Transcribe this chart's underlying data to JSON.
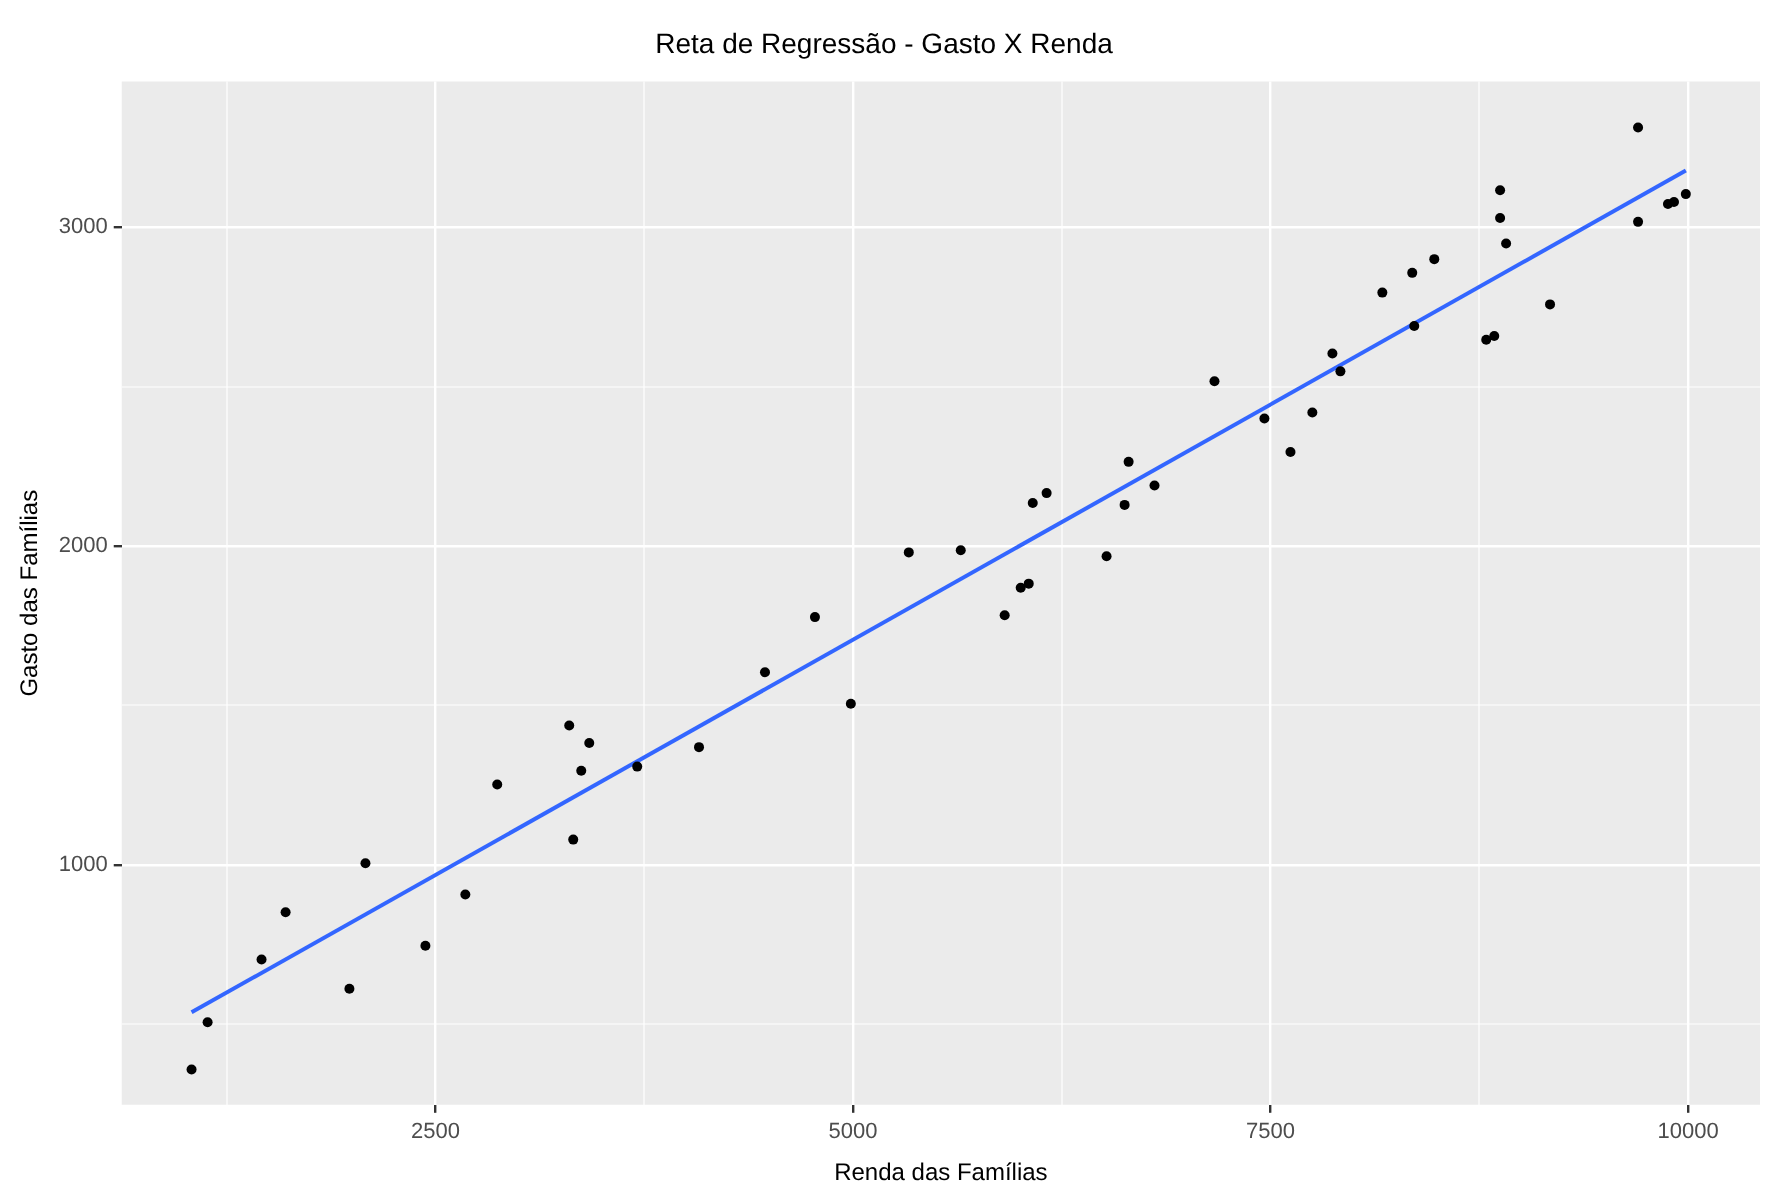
{
  "chart_data": {
    "type": "scatter",
    "title": "Reta de Regressão - Gasto X Renda",
    "xlabel": "Renda das Famílias",
    "ylabel": "Gasto das Famílias",
    "series": [
      {
        "type": "scatter",
        "color": "#000000",
        "marker": "circle",
        "x": [
          1040,
          1136,
          1459,
          1603,
          1985,
          2081,
          2440,
          2679,
          2870,
          3301,
          3325,
          3373,
          3421,
          3708,
          4078,
          4473,
          4772,
          4987,
          5334,
          5645,
          5908,
          6004,
          6052,
          6076,
          6159,
          6518,
          6626,
          6650,
          6805,
          7164,
          7463,
          7619,
          7750,
          7870,
          7918,
          8169,
          8348,
          8360,
          8480,
          8791,
          8839,
          8874,
          8874,
          8910,
          9173,
          9700,
          9700,
          9879,
          9915,
          9986
        ],
        "values": [
          358,
          506,
          703,
          851,
          611,
          1005,
          746,
          907,
          1252,
          1437,
          1079,
          1295,
          1382,
          1308,
          1369,
          1604,
          1777,
          1505,
          1980,
          1987,
          1783,
          1869,
          1882,
          2135,
          2166,
          1968,
          2129,
          2264,
          2190,
          2517,
          2400,
          2295,
          2419,
          2604,
          2548,
          2795,
          2857,
          2690,
          2900,
          2647,
          2659,
          3116,
          3029,
          2949,
          2758,
          3313,
          3017,
          3073,
          3079,
          3104
        ]
      },
      {
        "type": "line",
        "color": "#3366ff",
        "marker": "none",
        "line_style": "solid",
        "x": [
          1040,
          9986
        ],
        "values": [
          537,
          3178
        ]
      }
    ],
    "xlim": [
      622,
      10430
    ],
    "ylim": [
      247,
      3457
    ],
    "xticks": [
      {
        "value": 1250,
        "label": null
      },
      2500,
      {
        "value": 3750,
        "label": null
      },
      5000,
      {
        "value": 6250,
        "label": null
      },
      7500,
      {
        "value": 8750,
        "label": null
      },
      10000
    ],
    "yticks": [
      {
        "value": 500,
        "label": null
      },
      1000,
      {
        "value": 1500,
        "label": null
      },
      2000,
      {
        "value": 2500,
        "label": null
      },
      3000
    ],
    "grid": true,
    "legend": false
  }
}
